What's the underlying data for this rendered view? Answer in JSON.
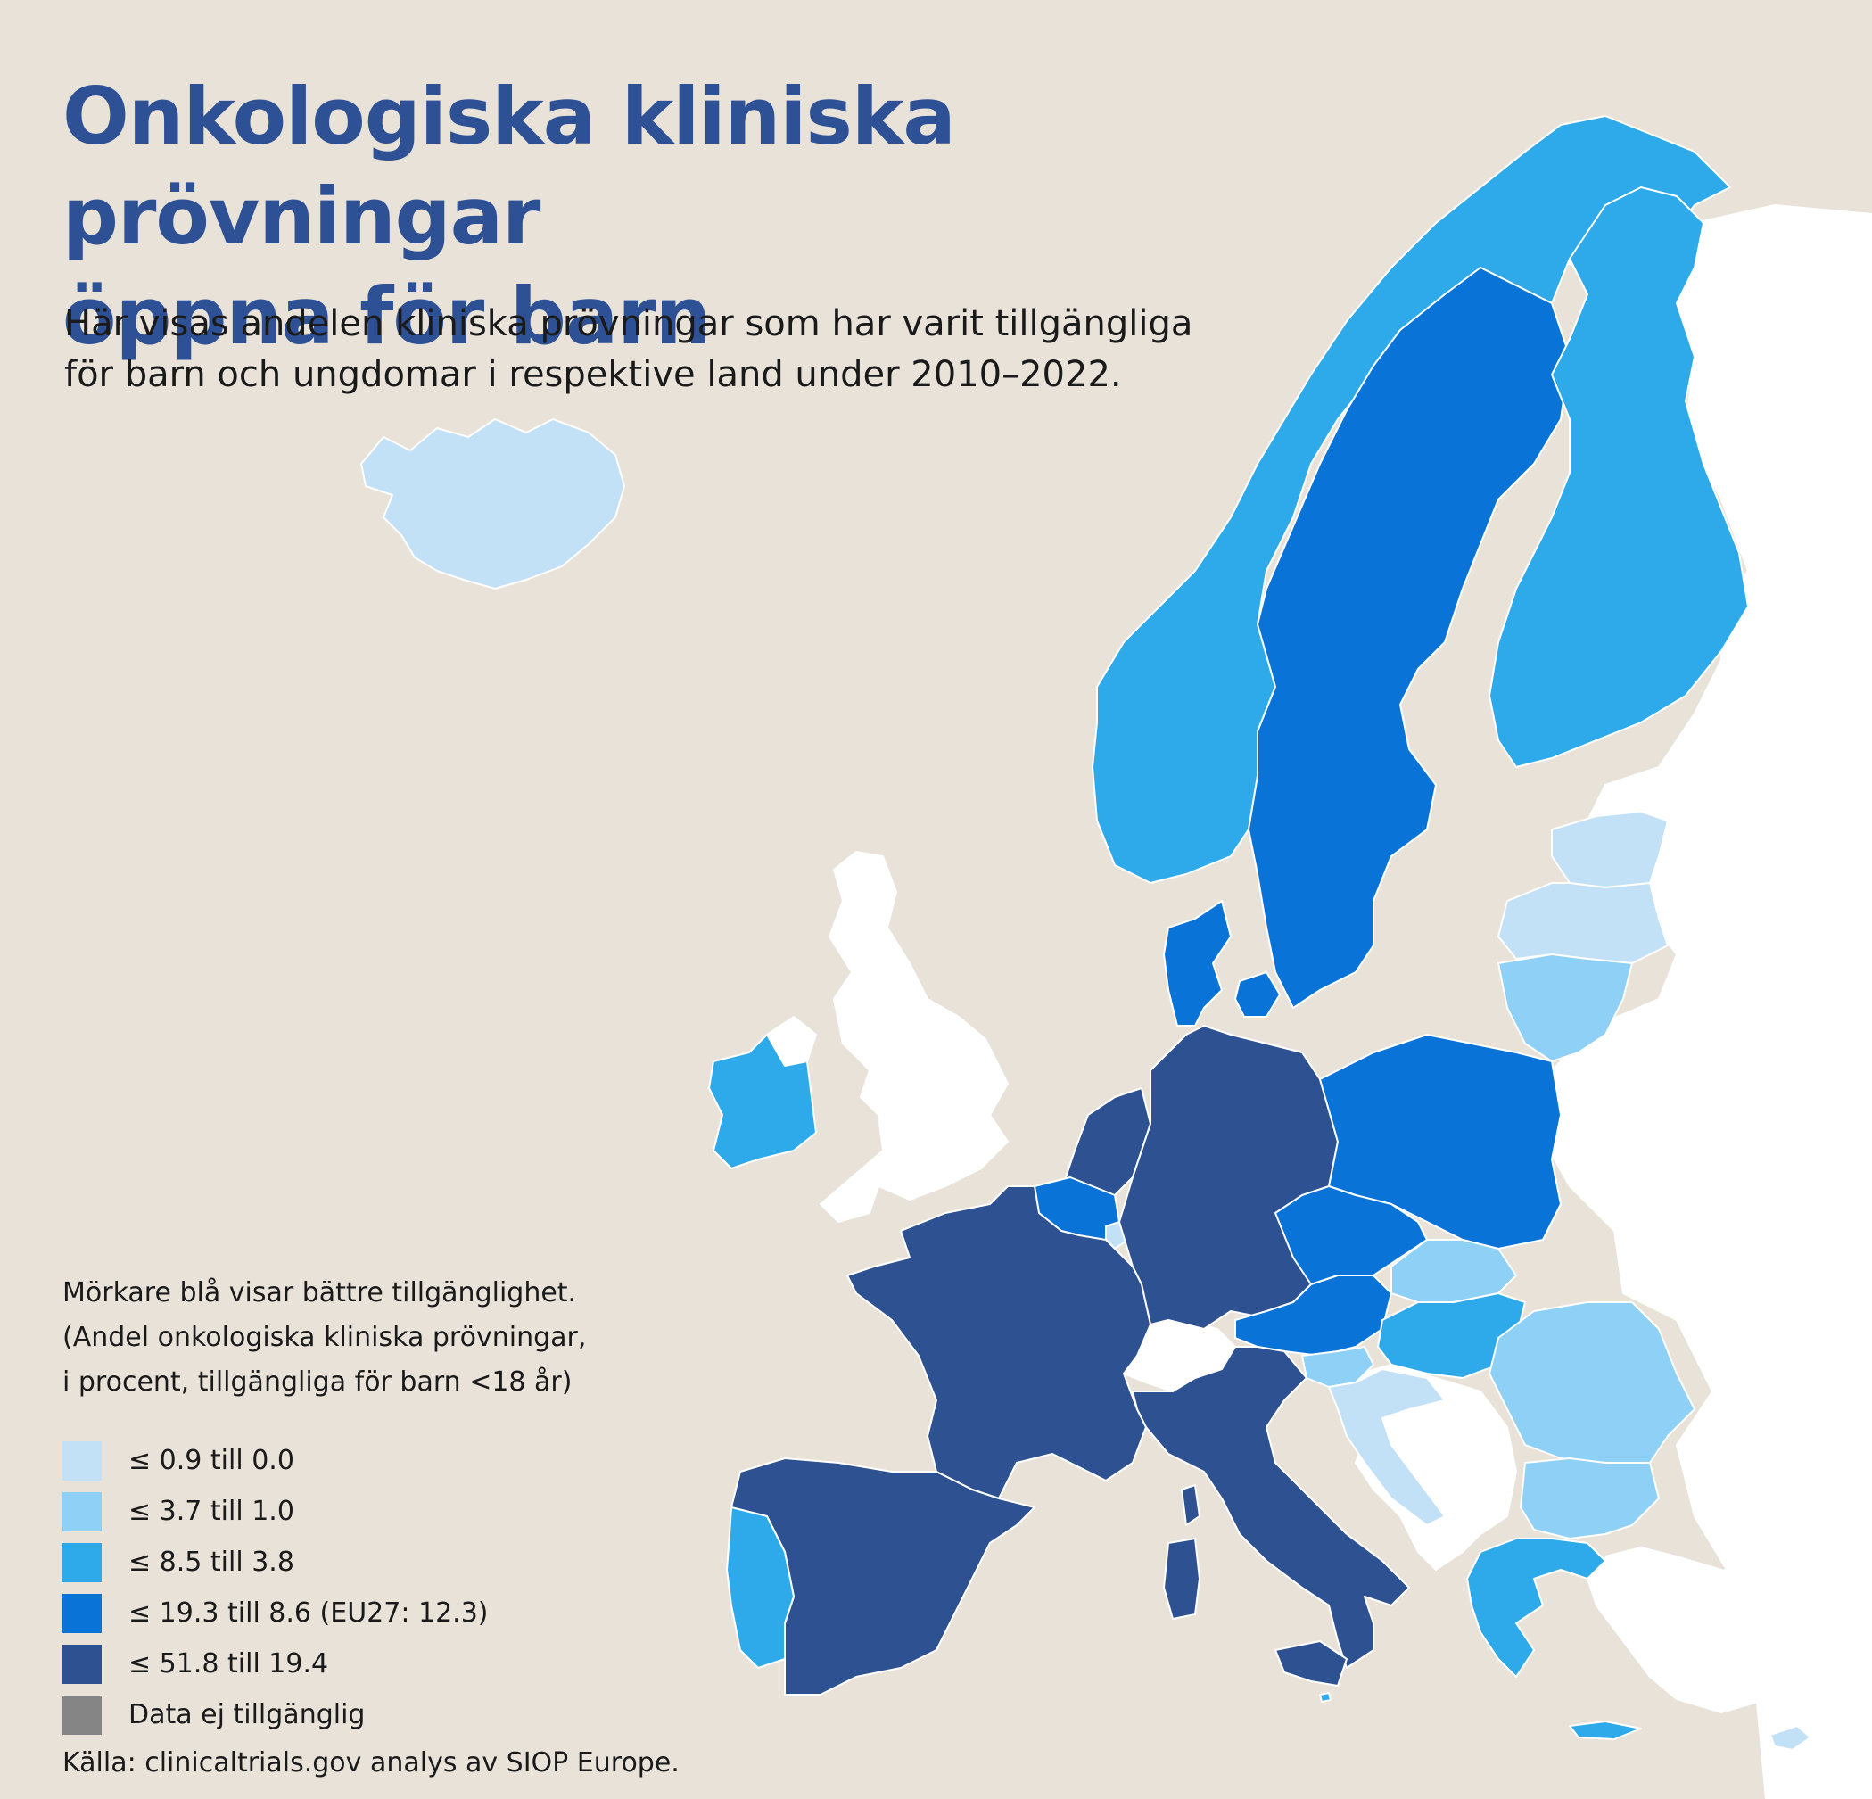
{
  "title_lines": [
    "Onkologiska kliniska prövningar",
    "öppna för barn"
  ],
  "subtitle_lines": [
    "Här visas andelen kliniska prövningar som har varit tillgängliga",
    "för barn och ungdomar i respektive land under 2010–2022."
  ],
  "legend": {
    "note_lines": [
      "Mörkare blå visar bättre tillgänglighet.",
      "(Andel onkologiska kliniska prövningar,",
      "i procent, tillgängliga för barn <18 år)"
    ],
    "items": [
      {
        "label": "≤ 0.9 till 0.0",
        "color": "#c3e1f6"
      },
      {
        "label": "≤ 3.7 till 1.0",
        "color": "#8ed0f6"
      },
      {
        "label": "≤ 8.5 till 3.8",
        "color": "#2eaaea"
      },
      {
        "label": "≤ 19.3 till 8.6 (EU27: 12.3)",
        "color": "#0973d8"
      },
      {
        "label": "≤ 51.8 till 19.4",
        "color": "#2e5191"
      },
      {
        "label": "Data ej tillgänglig",
        "color": "#858585"
      }
    ],
    "source": "Källa: clinicaltrials.gov analys av SIOP Europe."
  },
  "colors": {
    "background": "#e8e2d9",
    "sea": "#e8e2d9",
    "non_eu": "#ffffff",
    "title": "#2e5195"
  },
  "countries": [
    {
      "name": "Iceland",
      "class": 1
    },
    {
      "name": "Norway",
      "class": 3
    },
    {
      "name": "Sweden",
      "class": 4
    },
    {
      "name": "Finland",
      "class": 3
    },
    {
      "name": "Estonia",
      "class": 1
    },
    {
      "name": "Latvia",
      "class": 1
    },
    {
      "name": "Lithuania",
      "class": 2
    },
    {
      "name": "Denmark",
      "class": 4
    },
    {
      "name": "Ireland",
      "class": 3
    },
    {
      "name": "Netherlands",
      "class": 5
    },
    {
      "name": "Belgium",
      "class": 4
    },
    {
      "name": "Luxembourg",
      "class": 1
    },
    {
      "name": "Germany",
      "class": 5
    },
    {
      "name": "Poland",
      "class": 4
    },
    {
      "name": "Czechia",
      "class": 4
    },
    {
      "name": "Slovakia",
      "class": 2
    },
    {
      "name": "Austria",
      "class": 4
    },
    {
      "name": "Hungary",
      "class": 3
    },
    {
      "name": "Slovenia",
      "class": 2
    },
    {
      "name": "Croatia",
      "class": 1
    },
    {
      "name": "Romania",
      "class": 2
    },
    {
      "name": "Bulgaria",
      "class": 2
    },
    {
      "name": "Greece",
      "class": 3
    },
    {
      "name": "Cyprus",
      "class": 1
    },
    {
      "name": "France",
      "class": 5
    },
    {
      "name": "Spain",
      "class": 5
    },
    {
      "name": "Portugal",
      "class": 3
    },
    {
      "name": "Italy",
      "class": 5
    },
    {
      "name": "Malta",
      "class": 3
    }
  ]
}
